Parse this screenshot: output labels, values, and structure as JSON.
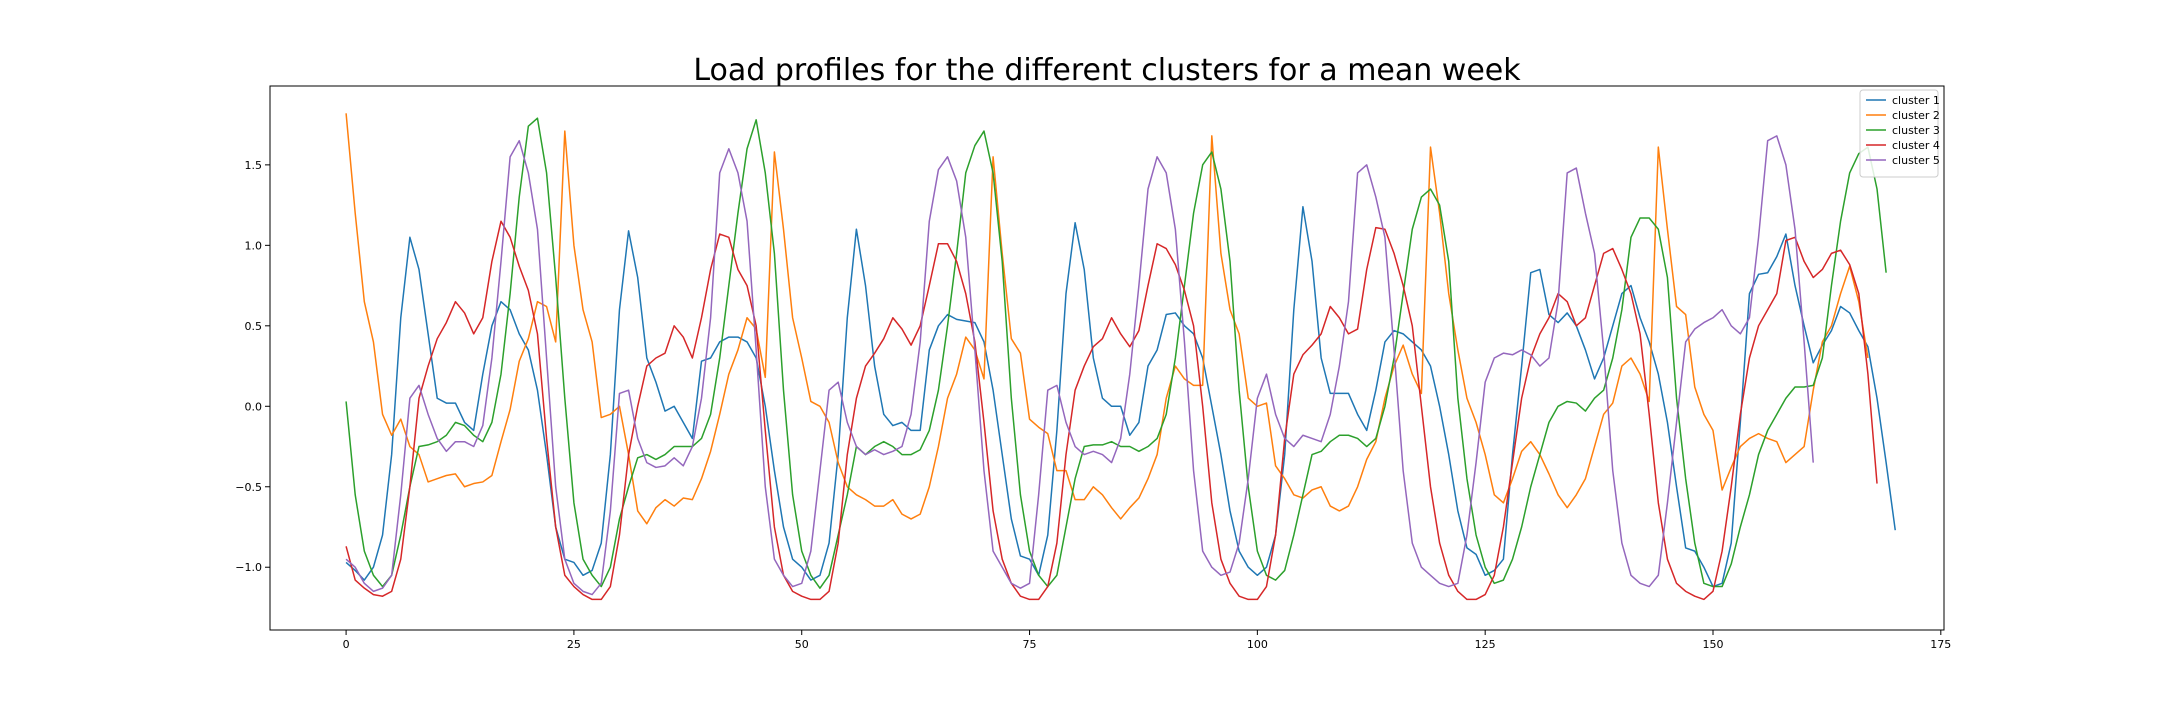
{
  "chart_data": {
    "type": "line",
    "title": "Load profiles for the different clusters for a mean week",
    "xlabel": "",
    "ylabel": "",
    "xlim": [
      -8.35,
      175.35
    ],
    "ylim": [
      -1.39,
      1.99
    ],
    "xticks": [
      0,
      25,
      50,
      75,
      100,
      125,
      150,
      175
    ],
    "yticks": [
      -1.0,
      -0.5,
      0.0,
      0.5,
      1.0,
      1.5
    ],
    "ytick_labels": [
      "−1.0",
      "−0.5",
      "0.0",
      "0.5",
      "1.0",
      "1.5"
    ],
    "grid": false,
    "legend_position": "top-right",
    "series": [
      {
        "name": "cluster 1",
        "color": "#1f77b4",
        "values": [
          -0.97,
          -1.02,
          -1.08,
          -1.0,
          -0.8,
          -0.3,
          0.55,
          1.05,
          0.85,
          0.45,
          0.05,
          0.02,
          0.02,
          -0.1,
          -0.15,
          0.2,
          0.5,
          0.65,
          0.6,
          0.45,
          0.35,
          0.1,
          -0.3,
          -0.75,
          -0.95,
          -0.97,
          -1.05,
          -1.02,
          -0.85,
          -0.3,
          0.6,
          1.09,
          0.8,
          0.3,
          0.15,
          -0.03,
          0.0,
          -0.1,
          -0.2,
          0.28,
          0.3,
          0.4,
          0.43,
          0.43,
          0.4,
          0.3,
          0.0,
          -0.4,
          -0.75,
          -0.95,
          -1.0,
          -1.08,
          -1.05,
          -0.85,
          -0.3,
          0.55,
          1.1,
          0.75,
          0.25,
          -0.05,
          -0.12,
          -0.1,
          -0.15,
          -0.15,
          0.35,
          0.5,
          0.57,
          0.54,
          0.53,
          0.52,
          0.4,
          0.1,
          -0.3,
          -0.7,
          -0.93,
          -0.95,
          -1.05,
          -0.8,
          -0.15,
          0.7,
          1.14,
          0.85,
          0.3,
          0.05,
          0.0,
          0.0,
          -0.18,
          -0.1,
          0.25,
          0.35,
          0.57,
          0.58,
          0.5,
          0.45,
          0.3,
          0.0,
          -0.3,
          -0.65,
          -0.9,
          -1.0,
          -1.05,
          -1.0,
          -0.8,
          -0.3,
          0.6,
          1.24,
          0.9,
          0.3,
          0.08,
          0.08,
          0.08,
          -0.05,
          -0.15,
          0.1,
          0.4,
          0.47,
          0.45,
          0.4,
          0.35,
          0.25,
          0.0,
          -0.3,
          -0.65,
          -0.88,
          -0.92,
          -1.05,
          -1.02,
          -0.95,
          -0.3,
          0.25,
          0.83,
          0.85,
          0.57,
          0.52,
          0.58,
          0.5,
          0.35,
          0.17,
          0.3,
          0.5,
          0.7,
          0.75,
          0.55,
          0.4,
          0.2,
          -0.1,
          -0.5,
          -0.88,
          -0.9,
          -1.0,
          -1.12,
          -1.1,
          -0.85,
          -0.1,
          0.7,
          0.82,
          0.83,
          0.93,
          1.07,
          0.75,
          0.5,
          0.27,
          0.38,
          0.47,
          0.62,
          0.58,
          0.47,
          0.37,
          0.05,
          -0.35,
          -0.77
        ]
      },
      {
        "name": "cluster 2",
        "color": "#ff7f0e",
        "values": [
          1.82,
          1.2,
          0.65,
          0.4,
          -0.05,
          -0.18,
          -0.08,
          -0.25,
          -0.3,
          -0.47,
          -0.45,
          -0.43,
          -0.42,
          -0.5,
          -0.48,
          -0.47,
          -0.43,
          -0.22,
          -0.02,
          0.28,
          0.42,
          0.65,
          0.62,
          0.4,
          1.71,
          1.0,
          0.6,
          0.4,
          -0.07,
          -0.05,
          0.0,
          -0.3,
          -0.65,
          -0.73,
          -0.63,
          -0.58,
          -0.62,
          -0.57,
          -0.58,
          -0.45,
          -0.28,
          -0.05,
          0.2,
          0.35,
          0.55,
          0.48,
          0.18,
          1.58,
          1.1,
          0.55,
          0.3,
          0.03,
          0.0,
          -0.1,
          -0.35,
          -0.5,
          -0.55,
          -0.58,
          -0.62,
          -0.62,
          -0.58,
          -0.67,
          -0.7,
          -0.67,
          -0.5,
          -0.25,
          0.05,
          0.2,
          0.43,
          0.35,
          0.17,
          1.55,
          0.95,
          0.42,
          0.33,
          -0.08,
          -0.13,
          -0.17,
          -0.4,
          -0.4,
          -0.58,
          -0.58,
          -0.5,
          -0.55,
          -0.63,
          -0.7,
          -0.63,
          -0.57,
          -0.45,
          -0.3,
          0.05,
          0.25,
          0.17,
          0.13,
          0.13,
          1.68,
          0.95,
          0.6,
          0.45,
          0.05,
          0.0,
          0.02,
          -0.37,
          -0.45,
          -0.55,
          -0.57,
          -0.52,
          -0.5,
          -0.62,
          -0.65,
          -0.62,
          -0.5,
          -0.33,
          -0.22,
          0.05,
          0.25,
          0.38,
          0.2,
          0.08,
          1.61,
          1.2,
          0.7,
          0.35,
          0.05,
          -0.1,
          -0.3,
          -0.55,
          -0.6,
          -0.45,
          -0.28,
          -0.22,
          -0.3,
          -0.42,
          -0.55,
          -0.63,
          -0.55,
          -0.45,
          -0.25,
          -0.05,
          0.02,
          0.25,
          0.3,
          0.2,
          0.03,
          1.61,
          1.1,
          0.62,
          0.57,
          0.12,
          -0.05,
          -0.15,
          -0.52,
          -0.38,
          -0.25,
          -0.2,
          -0.17,
          -0.2,
          -0.22,
          -0.35,
          -0.3,
          -0.25,
          0.1,
          0.4,
          0.5,
          0.7,
          0.87,
          0.65,
          0.3
        ]
      },
      {
        "name": "cluster 3",
        "color": "#2ca02c",
        "values": [
          0.03,
          -0.55,
          -0.9,
          -1.05,
          -1.12,
          -1.05,
          -0.8,
          -0.5,
          -0.25,
          -0.24,
          -0.22,
          -0.18,
          -0.1,
          -0.12,
          -0.18,
          -0.22,
          -0.1,
          0.2,
          0.7,
          1.3,
          1.74,
          1.79,
          1.45,
          0.8,
          0.05,
          -0.6,
          -0.95,
          -1.05,
          -1.12,
          -1.0,
          -0.7,
          -0.5,
          -0.32,
          -0.3,
          -0.33,
          -0.3,
          -0.25,
          -0.25,
          -0.25,
          -0.2,
          -0.05,
          0.3,
          0.75,
          1.2,
          1.6,
          1.78,
          1.45,
          0.95,
          0.1,
          -0.55,
          -0.9,
          -1.05,
          -1.13,
          -1.05,
          -0.8,
          -0.55,
          -0.25,
          -0.3,
          -0.25,
          -0.22,
          -0.25,
          -0.3,
          -0.3,
          -0.27,
          -0.15,
          0.1,
          0.5,
          0.95,
          1.45,
          1.62,
          1.71,
          1.45,
          0.9,
          0.05,
          -0.55,
          -0.9,
          -1.05,
          -1.12,
          -1.05,
          -0.75,
          -0.45,
          -0.25,
          -0.24,
          -0.24,
          -0.22,
          -0.25,
          -0.25,
          -0.28,
          -0.25,
          -0.2,
          -0.05,
          0.3,
          0.75,
          1.2,
          1.5,
          1.58,
          1.35,
          0.9,
          0.1,
          -0.5,
          -0.9,
          -1.05,
          -1.08,
          -1.02,
          -0.8,
          -0.55,
          -0.3,
          -0.28,
          -0.22,
          -0.18,
          -0.18,
          -0.2,
          -0.25,
          -0.2,
          0.0,
          0.3,
          0.7,
          1.1,
          1.3,
          1.35,
          1.25,
          0.9,
          0.05,
          -0.45,
          -0.8,
          -1.0,
          -1.1,
          -1.08,
          -0.95,
          -0.75,
          -0.5,
          -0.3,
          -0.1,
          0.0,
          0.03,
          0.02,
          -0.03,
          0.05,
          0.1,
          0.3,
          0.6,
          1.05,
          1.17,
          1.17,
          1.1,
          0.8,
          0.05,
          -0.45,
          -0.85,
          -1.1,
          -1.12,
          -1.12,
          -0.98,
          -0.75,
          -0.55,
          -0.3,
          -0.15,
          -0.05,
          0.05,
          0.12,
          0.12,
          0.13,
          0.3,
          0.75,
          1.15,
          1.45,
          1.57,
          1.61,
          1.35,
          0.83
        ]
      },
      {
        "name": "cluster 4",
        "color": "#d62728",
        "values": [
          -0.87,
          -1.08,
          -1.13,
          -1.17,
          -1.18,
          -1.15,
          -0.95,
          -0.5,
          0.05,
          0.25,
          0.42,
          0.52,
          0.65,
          0.58,
          0.45,
          0.55,
          0.9,
          1.15,
          1.05,
          0.87,
          0.72,
          0.45,
          -0.2,
          -0.75,
          -1.05,
          -1.12,
          -1.17,
          -1.2,
          -1.2,
          -1.12,
          -0.8,
          -0.3,
          0.0,
          0.25,
          0.3,
          0.33,
          0.5,
          0.43,
          0.3,
          0.55,
          0.85,
          1.07,
          1.05,
          0.85,
          0.75,
          0.5,
          -0.15,
          -0.75,
          -1.05,
          -1.15,
          -1.18,
          -1.2,
          -1.2,
          -1.15,
          -0.85,
          -0.3,
          0.05,
          0.25,
          0.33,
          0.42,
          0.55,
          0.48,
          0.38,
          0.5,
          0.75,
          1.01,
          1.01,
          0.9,
          0.7,
          0.4,
          -0.1,
          -0.65,
          -0.95,
          -1.1,
          -1.18,
          -1.2,
          -1.2,
          -1.12,
          -0.85,
          -0.3,
          0.1,
          0.25,
          0.37,
          0.42,
          0.55,
          0.45,
          0.37,
          0.47,
          0.75,
          1.01,
          0.98,
          0.88,
          0.72,
          0.5,
          0.0,
          -0.6,
          -0.95,
          -1.1,
          -1.18,
          -1.2,
          -1.2,
          -1.12,
          -0.8,
          -0.2,
          0.2,
          0.32,
          0.38,
          0.45,
          0.62,
          0.55,
          0.45,
          0.48,
          0.85,
          1.11,
          1.1,
          0.95,
          0.75,
          0.5,
          0.0,
          -0.5,
          -0.85,
          -1.05,
          -1.15,
          -1.2,
          -1.2,
          -1.17,
          -1.05,
          -0.75,
          -0.35,
          0.05,
          0.3,
          0.45,
          0.55,
          0.7,
          0.65,
          0.5,
          0.55,
          0.75,
          0.95,
          0.98,
          0.85,
          0.7,
          0.45,
          -0.05,
          -0.6,
          -0.95,
          -1.1,
          -1.15,
          -1.18,
          -1.2,
          -1.15,
          -0.9,
          -0.5,
          -0.05,
          0.3,
          0.5,
          0.6,
          0.7,
          1.03,
          1.05,
          0.9,
          0.8,
          0.85,
          0.95,
          0.97,
          0.88,
          0.7,
          0.2,
          -0.48
        ]
      },
      {
        "name": "cluster 5",
        "color": "#9467bd",
        "values": [
          -0.95,
          -1.0,
          -1.1,
          -1.15,
          -1.13,
          -1.05,
          -0.55,
          0.05,
          0.13,
          -0.05,
          -0.2,
          -0.28,
          -0.22,
          -0.22,
          -0.25,
          -0.12,
          0.3,
          0.9,
          1.55,
          1.65,
          1.45,
          1.1,
          0.3,
          -0.5,
          -0.95,
          -1.1,
          -1.15,
          -1.17,
          -1.1,
          -0.65,
          0.08,
          0.1,
          -0.2,
          -0.35,
          -0.38,
          -0.37,
          -0.32,
          -0.37,
          -0.25,
          0.05,
          0.55,
          1.45,
          1.6,
          1.45,
          1.15,
          0.35,
          -0.5,
          -0.95,
          -1.05,
          -1.12,
          -1.1,
          -0.9,
          -0.4,
          0.1,
          0.15,
          -0.1,
          -0.25,
          -0.3,
          -0.27,
          -0.3,
          -0.28,
          -0.25,
          -0.05,
          0.4,
          1.15,
          1.47,
          1.55,
          1.4,
          1.05,
          0.35,
          -0.4,
          -0.9,
          -1.0,
          -1.1,
          -1.13,
          -1.1,
          -0.55,
          0.1,
          0.13,
          -0.1,
          -0.25,
          -0.3,
          -0.28,
          -0.3,
          -0.35,
          -0.2,
          0.2,
          0.75,
          1.35,
          1.55,
          1.45,
          1.1,
          0.4,
          -0.4,
          -0.9,
          -1.0,
          -1.05,
          -1.03,
          -0.85,
          -0.45,
          0.05,
          0.2,
          -0.05,
          -0.2,
          -0.25,
          -0.18,
          -0.2,
          -0.22,
          -0.05,
          0.25,
          0.65,
          1.45,
          1.5,
          1.3,
          1.05,
          0.35,
          -0.4,
          -0.85,
          -1.0,
          -1.05,
          -1.1,
          -1.12,
          -1.1,
          -0.8,
          -0.35,
          0.15,
          0.3,
          0.33,
          0.32,
          0.35,
          0.32,
          0.25,
          0.3,
          0.65,
          1.45,
          1.48,
          1.2,
          0.95,
          0.35,
          -0.4,
          -0.85,
          -1.05,
          -1.1,
          -1.12,
          -1.05,
          -0.6,
          -0.1,
          0.4,
          0.48,
          0.52,
          0.55,
          0.6,
          0.5,
          0.45,
          0.55,
          1.05,
          1.65,
          1.68,
          1.5,
          1.1,
          0.4,
          -0.35
        ]
      }
    ]
  }
}
